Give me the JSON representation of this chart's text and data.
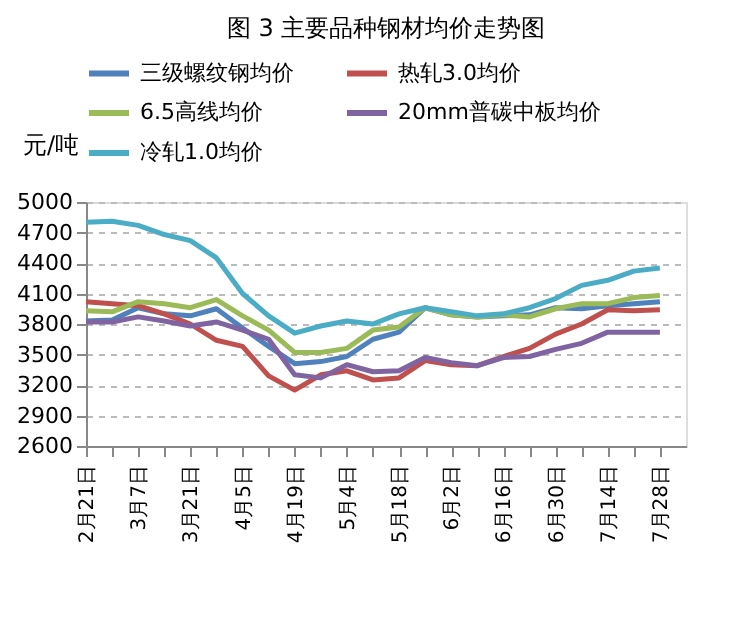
{
  "chart_data": {
    "type": "line",
    "title": "图 3  主要品种钢材均价走势图",
    "ylabel": "元/吨",
    "categories": [
      "2月21日",
      null,
      "3月7日",
      null,
      "3月21日",
      null,
      "4月5日",
      null,
      "4月19日",
      null,
      "5月4日",
      null,
      "5月18日",
      null,
      "6月2日",
      null,
      "6月16日",
      null,
      "6月30日",
      null,
      "7月14日",
      null,
      "7月28日"
    ],
    "series": [
      {
        "name": "三级螺纹钢均价",
        "color": "#4f81bd",
        "values": [
          3830,
          3840,
          3960,
          3900,
          3880,
          3950,
          3760,
          3580,
          3410,
          3430,
          3480,
          3650,
          3720,
          3960,
          3890,
          3870,
          3880,
          3890,
          3960,
          3950,
          3980,
          4000,
          4020
        ]
      },
      {
        "name": "热轧3.0均价",
        "color": "#c0504d",
        "values": [
          4020,
          4000,
          3980,
          3900,
          3800,
          3640,
          3580,
          3290,
          3150,
          3300,
          3340,
          3250,
          3270,
          3440,
          3400,
          3390,
          3480,
          3560,
          3700,
          3800,
          3940,
          3930,
          3940
        ]
      },
      {
        "name": "6.5高线均价",
        "color": "#9bbb59",
        "values": [
          3930,
          3920,
          4020,
          4000,
          3960,
          4040,
          3880,
          3740,
          3520,
          3520,
          3560,
          3740,
          3770,
          3960,
          3890,
          3870,
          3890,
          3870,
          3950,
          4000,
          4000,
          4060,
          4080
        ]
      },
      {
        "name": "20mm普碳中板均价",
        "color": "#8064a2",
        "values": [
          3820,
          3820,
          3870,
          3830,
          3780,
          3820,
          3740,
          3650,
          3300,
          3270,
          3400,
          3330,
          3340,
          3470,
          3420,
          3390,
          3470,
          3480,
          3550,
          3610,
          3720,
          3720,
          3720
        ]
      },
      {
        "name": "冷轧1.0均价",
        "color": "#4bacc6",
        "values": [
          4800,
          4810,
          4770,
          4680,
          4620,
          4450,
          4100,
          3880,
          3710,
          3780,
          3830,
          3800,
          3900,
          3960,
          3920,
          3880,
          3900,
          3960,
          4050,
          4180,
          4230,
          4320,
          4350
        ]
      }
    ],
    "ylim": [
      2600,
      5000
    ],
    "yticks": [
      2600,
      2900,
      3200,
      3500,
      3800,
      4100,
      4400,
      4700,
      5000
    ],
    "grid": "y",
    "legend": "top",
    "line_style": "solid",
    "marker": "none"
  }
}
